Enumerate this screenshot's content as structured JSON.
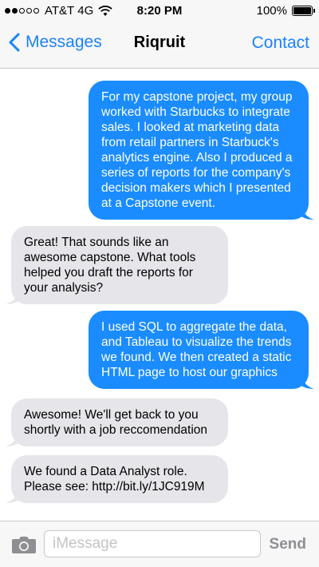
{
  "status_bar": {
    "carrier": "AT&T",
    "network": "4G",
    "time": "8:20 PM",
    "battery": "100%",
    "battery_level": 1.0,
    "signal_bars": 2
  },
  "nav": {
    "back_label": "Messages",
    "title": "Riqruit",
    "contact_label": "Contact"
  },
  "messages": [
    {
      "direction": "sent",
      "text": "For my capstone project, my group worked with Starbucks to integrate sales. I looked at marketing data from retail partners in Starbuck's analytics engine. Also I produced a series of reports for the company's decision makers which I presented at a Capstone event."
    },
    {
      "direction": "received",
      "text": "Great! That sounds like an awesome capstone. What tools helped you draft the reports for your analysis?"
    },
    {
      "direction": "sent",
      "text": "I used SQL to aggregate the data, and Tableau to visualize the trends we found. We then created a static HTML page to host our graphics"
    },
    {
      "direction": "received",
      "text": "Awesome! We'll get back to you shortly with a job reccomendation"
    },
    {
      "direction": "received",
      "text": "We found a Data Analyst role. Please see: http://bit.ly/1JC919M"
    }
  ],
  "input": {
    "placeholder": "iMessage",
    "value": "",
    "send_label": "Send"
  },
  "colors": {
    "accent": "#1a82fb",
    "sent_bubble": "#1a8cff",
    "received_bubble": "#e5e5ea",
    "bar_background": "#f7f7f7"
  },
  "icons": [
    "wifi-icon",
    "battery-icon",
    "back-chevron-icon",
    "camera-icon"
  ]
}
